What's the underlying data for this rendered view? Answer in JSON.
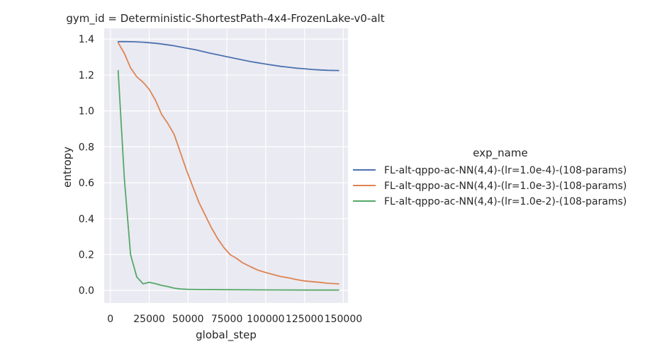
{
  "chart_data": {
    "type": "line",
    "title": "gym_id = Deterministic-ShortestPath-4x4-FrozenLake-v0-alt",
    "xlabel": "global_step",
    "ylabel": "entropy",
    "xlim": [
      -4000,
      153000
    ],
    "ylim": [
      -0.07,
      1.46
    ],
    "xticks": [
      0,
      25000,
      50000,
      75000,
      100000,
      125000,
      150000
    ],
    "xtick_labels": [
      "0",
      "25000",
      "50000",
      "75000",
      "100000",
      "125000",
      "150000"
    ],
    "yticks": [
      0.0,
      0.2,
      0.4,
      0.6,
      0.8,
      1.0,
      1.2,
      1.4
    ],
    "ytick_labels": [
      "0.0",
      "0.2",
      "0.4",
      "0.6",
      "0.8",
      "1.0",
      "1.2",
      "1.4"
    ],
    "grid": true,
    "background": "#eaeaf2",
    "legend": {
      "title": "exp_name",
      "placement": "right"
    },
    "series": [
      {
        "name": "FL-alt-qppo-ac-NN(4,4)-(lr=1.0e-4)-(108-params)",
        "color": "#4c72b0",
        "x": [
          5000,
          10000,
          15000,
          20000,
          25000,
          30000,
          35000,
          40000,
          45000,
          50000,
          55000,
          60000,
          65000,
          70000,
          75000,
          80000,
          85000,
          90000,
          95000,
          100000,
          105000,
          110000,
          115000,
          120000,
          125000,
          130000,
          135000,
          140000,
          147000
        ],
        "y": [
          1.386,
          1.386,
          1.385,
          1.383,
          1.38,
          1.376,
          1.37,
          1.364,
          1.356,
          1.348,
          1.34,
          1.33,
          1.32,
          1.311,
          1.302,
          1.293,
          1.284,
          1.275,
          1.268,
          1.261,
          1.254,
          1.248,
          1.243,
          1.238,
          1.235,
          1.231,
          1.228,
          1.226,
          1.225
        ]
      },
      {
        "name": "FL-alt-qppo-ac-NN(4,4)-(lr=1.0e-3)-(108-params)",
        "color": "#dd8452",
        "x": [
          5000,
          9000,
          13000,
          17000,
          21000,
          25000,
          29000,
          33000,
          37000,
          41000,
          45000,
          49000,
          53000,
          57000,
          61000,
          65000,
          69000,
          73000,
          77000,
          81000,
          85000,
          90000,
          95000,
          100000,
          105000,
          110000,
          115000,
          120000,
          125000,
          130000,
          135000,
          140000,
          147000
        ],
        "y": [
          1.38,
          1.32,
          1.24,
          1.19,
          1.16,
          1.12,
          1.06,
          0.98,
          0.93,
          0.87,
          0.77,
          0.67,
          0.58,
          0.49,
          0.42,
          0.35,
          0.29,
          0.24,
          0.2,
          0.18,
          0.155,
          0.133,
          0.113,
          0.1,
          0.088,
          0.077,
          0.07,
          0.06,
          0.053,
          0.049,
          0.045,
          0.04,
          0.037
        ]
      },
      {
        "name": "FL-alt-qppo-ac-NN(4,4)-(lr=1.0e-2)-(108-params)",
        "color": "#55a868",
        "x": [
          5000,
          9000,
          13000,
          17000,
          21000,
          25000,
          29000,
          33000,
          37000,
          41000,
          45000,
          50000,
          60000,
          75000,
          100000,
          125000,
          147000
        ],
        "y": [
          1.225,
          0.62,
          0.2,
          0.075,
          0.037,
          0.045,
          0.038,
          0.028,
          0.022,
          0.013,
          0.008,
          0.006,
          0.005,
          0.004,
          0.003,
          0.002,
          0.002
        ]
      }
    ]
  }
}
